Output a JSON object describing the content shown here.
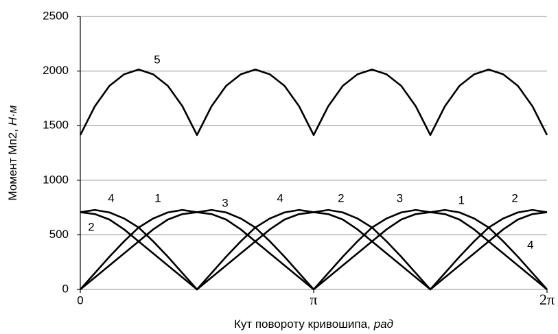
{
  "chart_data": {
    "type": "line",
    "x_label": {
      "text": "Кут повороту кривошипа,",
      "unit": "рад"
    },
    "y_label": {
      "text": "Момент Мп2,",
      "unit": "Н·м"
    },
    "xlim": [
      0,
      6.28319
    ],
    "xticks": [
      0,
      {
        "value": 3.14159,
        "label": "π"
      },
      {
        "value": 6.28319,
        "label": "2π"
      }
    ],
    "ylim": [
      0,
      2500
    ],
    "yticks": [
      0,
      500,
      1000,
      1500,
      2000,
      2500
    ],
    "grid": true,
    "x": [
      0,
      0.19635,
      0.3927,
      0.58905,
      0.7854,
      0.98175,
      1.1781,
      1.37445,
      1.5708,
      1.76715,
      1.9635,
      2.15984,
      2.35619,
      2.55254,
      2.74889,
      2.94524,
      3.14159,
      3.33794,
      3.53429,
      3.73064,
      3.92699,
      4.12334,
      4.31969,
      4.51604,
      4.71239,
      4.90874,
      5.10509,
      5.30144,
      5.49779,
      5.69414,
      5.89049,
      6.08684,
      6.28319
    ],
    "series": [
      {
        "color": "#000000",
        "values": [
          0,
          150,
          300,
          440,
          567,
          650,
          705,
          728,
          707,
          690,
          640,
          550,
          440,
          330,
          220,
          110,
          0,
          150,
          300,
          440,
          567,
          650,
          705,
          728,
          707,
          690,
          640,
          550,
          440,
          330,
          220,
          110,
          0
        ]
      },
      {
        "color": "#000000",
        "values": [
          707,
          690,
          640,
          550,
          440,
          330,
          220,
          110,
          0,
          150,
          300,
          440,
          567,
          650,
          705,
          728,
          707,
          690,
          640,
          550,
          440,
          330,
          220,
          110,
          0,
          150,
          300,
          440,
          567,
          650,
          705,
          728,
          707
        ]
      },
      {
        "color": "#000000",
        "values": [
          0,
          110,
          220,
          330,
          440,
          550,
          640,
          690,
          707,
          728,
          705,
          650,
          567,
          440,
          300,
          150,
          0,
          110,
          220,
          330,
          440,
          550,
          640,
          690,
          707,
          728,
          705,
          650,
          567,
          440,
          300,
          150,
          0
        ]
      },
      {
        "color": "#000000",
        "values": [
          707,
          728,
          705,
          650,
          567,
          440,
          300,
          150,
          0,
          110,
          220,
          330,
          440,
          550,
          640,
          690,
          707,
          728,
          705,
          650,
          567,
          440,
          300,
          150,
          0,
          110,
          220,
          330,
          440,
          550,
          640,
          690,
          707
        ]
      },
      {
        "color": "#000000",
        "values": [
          1414,
          1678,
          1865,
          1970,
          2014,
          1970,
          1865,
          1678,
          1414,
          1678,
          1865,
          1970,
          2014,
          1970,
          1865,
          1678,
          1414,
          1678,
          1865,
          1970,
          2014,
          1970,
          1865,
          1678,
          1414,
          1678,
          1865,
          1970,
          2014,
          1970,
          1865,
          1678,
          1414
        ]
      }
    ],
    "annotations": [
      {
        "text": "5",
        "x": 1.035,
        "y": 2098
      },
      {
        "text": "4",
        "x": 0.416,
        "y": 829
      },
      {
        "text": "1",
        "x": 1.044,
        "y": 829
      },
      {
        "text": "3",
        "x": 1.95,
        "y": 785
      },
      {
        "text": "4",
        "x": 2.69,
        "y": 829
      },
      {
        "text": "2",
        "x": 3.51,
        "y": 829
      },
      {
        "text": "3",
        "x": 4.3,
        "y": 829
      },
      {
        "text": "1",
        "x": 5.13,
        "y": 810
      },
      {
        "text": "2",
        "x": 5.85,
        "y": 829
      },
      {
        "text": "2",
        "x": 0.148,
        "y": 565
      },
      {
        "text": "4",
        "x": 6.06,
        "y": 402
      }
    ]
  }
}
